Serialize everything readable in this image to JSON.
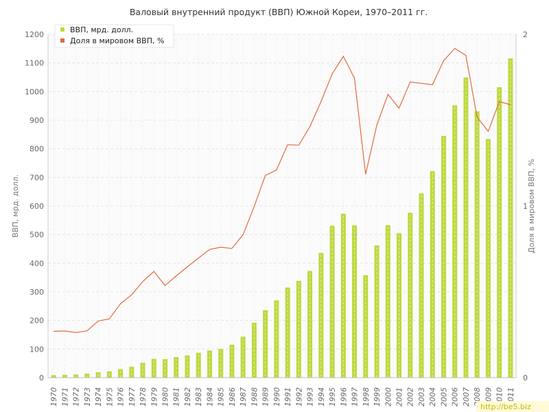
{
  "chart_data": {
    "type": "bar",
    "title": "Валовый внутренний продукт (ВВП) Южной Кореи, 1970–2011 гг.",
    "ylabel": "ВВП, мрд. долл.",
    "y2label": "Доля в мировом ВВП, %",
    "ylim": [
      0,
      1200
    ],
    "y2lim": [
      0,
      2
    ],
    "yticks": [
      "0",
      "100",
      "200",
      "300",
      "400",
      "500",
      "600",
      "700",
      "800",
      "900",
      "1000",
      "1100",
      "1200"
    ],
    "y2ticks": [
      "0",
      "1",
      "2"
    ],
    "grid": true,
    "legend": "top-left",
    "categories": [
      "1970",
      "1971",
      "1972",
      "1973",
      "1974",
      "1975",
      "1976",
      "1977",
      "1978",
      "1979",
      "1980",
      "1981",
      "1982",
      "1983",
      "1984",
      "1985",
      "1986",
      "1987",
      "1988",
      "1989",
      "1990",
      "1991",
      "1992",
      "1993",
      "1994",
      "1995",
      "1996",
      "1997",
      "1998",
      "1999",
      "2000",
      "2001",
      "2002",
      "2003",
      "2004",
      "2005",
      "2006",
      "2007",
      "2008",
      "2009",
      "2010",
      "2011"
    ],
    "series": [
      {
        "name": "ВВП, мрд. долл.",
        "kind": "bar",
        "axis": "left",
        "color": "#bcd93f",
        "values": [
          9,
          10,
          11,
          14,
          19,
          22,
          30,
          38,
          52,
          66,
          65,
          72,
          78,
          87,
          95,
          100,
          115,
          143,
          192,
          236,
          270,
          315,
          338,
          373,
          436,
          531,
          573,
          532,
          358,
          462,
          533,
          505,
          576,
          644,
          722,
          845,
          952,
          1049,
          931,
          834,
          1015,
          1116
        ]
      },
      {
        "name": "Доля в мировом ВВП, %",
        "kind": "line",
        "axis": "right",
        "color": "#e1693f",
        "values": [
          0.27,
          0.272,
          0.263,
          0.273,
          0.33,
          0.343,
          0.43,
          0.483,
          0.56,
          0.619,
          0.537,
          0.592,
          0.646,
          0.697,
          0.747,
          0.76,
          0.753,
          0.833,
          0.997,
          1.178,
          1.21,
          1.357,
          1.355,
          1.463,
          1.608,
          1.77,
          1.872,
          1.745,
          1.185,
          1.47,
          1.65,
          1.57,
          1.722,
          1.715,
          1.707,
          1.847,
          1.918,
          1.877,
          1.518,
          1.435,
          1.608,
          1.59
        ]
      }
    ]
  },
  "watermark": "http://be5.biz"
}
